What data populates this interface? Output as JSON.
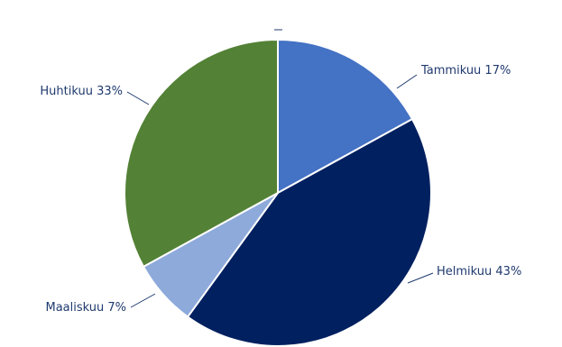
{
  "chart_data": {
    "type": "pie",
    "title": "",
    "slices": [
      {
        "label": "Tammikuu 17%",
        "value": 17,
        "color": "#4472c4"
      },
      {
        "label": "Helmikuu 43%",
        "value": 43,
        "color": "#002060"
      },
      {
        "label": "Maaliskuu 7%",
        "value": 7,
        "color": "#8eaadb"
      },
      {
        "label": "Huhtikuu 33%",
        "value": 33,
        "color": "#538135"
      }
    ],
    "start_angle_deg": 0,
    "direction": "clockwise",
    "legend": "none"
  }
}
